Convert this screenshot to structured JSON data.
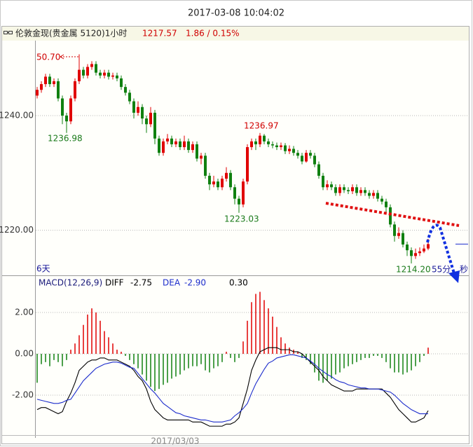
{
  "title": "2017-03-08 10:04:02",
  "chart_data": [
    {
      "type": "candlestick",
      "title": "伦敦金现(贵金属 5120)1小时",
      "header_values": [
        "1217.57",
        "1.86 / 0.15%"
      ],
      "open": [
        1243.5,
        1244.5,
        1245.5,
        1246.8,
        1245.5,
        1246,
        1243,
        1240,
        1239,
        1243,
        1246,
        1248,
        1247,
        1248.5,
        1249,
        1247.5,
        1247,
        1247.5,
        1246.8,
        1247,
        1246.5,
        1245,
        1244,
        1242.5,
        1240.5,
        1241.5,
        1239.5,
        1238.5,
        1240.5,
        1236,
        1233.5,
        1235.5,
        1236,
        1235,
        1235.5,
        1234.5,
        1235.5,
        1234,
        1235,
        1232.5,
        1233,
        1229.5,
        1228,
        1228.5,
        1227.5,
        1229,
        1230,
        1227.5,
        1225.5,
        1224.5,
        1228.5,
        1234.5,
        1235.5,
        1235,
        1236.5,
        1235.5,
        1235,
        1234.8,
        1234.5,
        1234.8,
        1233.8,
        1234.2,
        1233.5,
        1233,
        1232,
        1233.5,
        1233,
        1231.5,
        1229.5,
        1227.5,
        1228,
        1227.5,
        1226.5,
        1227.5,
        1227,
        1226.8,
        1227.5,
        1226.5,
        1227,
        1226.5,
        1226,
        1226.5,
        1225.5,
        1225,
        1224,
        1221,
        1219,
        1219.5,
        1217.5,
        1216.5,
        1215.5,
        1216,
        1216.3,
        1216.8
      ],
      "close": [
        1244.5,
        1245.5,
        1246.8,
        1245.5,
        1246,
        1243,
        1240,
        1239,
        1243,
        1246,
        1248,
        1247,
        1248.5,
        1249,
        1247.5,
        1247,
        1247.5,
        1246.8,
        1247,
        1246.5,
        1245,
        1244,
        1242.5,
        1240.5,
        1241.5,
        1239.5,
        1238.5,
        1240.5,
        1236,
        1233.5,
        1235.5,
        1236,
        1235,
        1235.5,
        1234.5,
        1235.5,
        1234,
        1235,
        1232.5,
        1233,
        1229.5,
        1228,
        1228.5,
        1227.5,
        1229,
        1230,
        1227.5,
        1225.5,
        1224.5,
        1228.5,
        1234.5,
        1235.5,
        1235,
        1236.5,
        1235.5,
        1235,
        1234.8,
        1234.5,
        1234.8,
        1233.8,
        1234.2,
        1233.5,
        1233,
        1232,
        1233.5,
        1233,
        1231.5,
        1229.5,
        1227.5,
        1228,
        1227.5,
        1226.5,
        1227.5,
        1227,
        1226.8,
        1227.5,
        1226.5,
        1227,
        1226.5,
        1226,
        1226.5,
        1225.5,
        1225,
        1224,
        1221,
        1219,
        1219.5,
        1217.5,
        1216.5,
        1215.5,
        1216,
        1216.3,
        1216.8,
        1217.57
      ],
      "high": [
        1245,
        1246,
        1247.3,
        1247.3,
        1246.5,
        1246.5,
        1243.5,
        1240.5,
        1243.5,
        1246.5,
        1250.7,
        1248.5,
        1249,
        1249.5,
        1249.5,
        1248,
        1248,
        1248,
        1247.5,
        1247.5,
        1247,
        1245.5,
        1244.5,
        1243,
        1242.5,
        1242,
        1240,
        1241.5,
        1241,
        1236.5,
        1236,
        1236.8,
        1236.5,
        1236,
        1236,
        1236.5,
        1236,
        1235.5,
        1235.5,
        1233.5,
        1233.5,
        1230,
        1229.5,
        1229,
        1229.5,
        1231,
        1230.5,
        1228,
        1226,
        1229,
        1235,
        1236,
        1236,
        1236.97,
        1236.8,
        1236,
        1235.5,
        1235.3,
        1235.3,
        1235.2,
        1234.8,
        1234.7,
        1234,
        1233.5,
        1234,
        1234,
        1233.5,
        1232,
        1230,
        1228.7,
        1228.5,
        1228,
        1228,
        1228,
        1227.5,
        1228,
        1228,
        1227.5,
        1227.5,
        1227,
        1227,
        1227,
        1226,
        1225.5,
        1224.5,
        1221.5,
        1220.5,
        1220,
        1218,
        1217,
        1216.8,
        1217,
        1217.5,
        1218.5
      ],
      "low": [
        1243,
        1244,
        1245,
        1245,
        1245,
        1242.5,
        1238.5,
        1236.98,
        1238.5,
        1242.5,
        1245.5,
        1246.5,
        1246.5,
        1248,
        1247,
        1246.5,
        1246.5,
        1246.3,
        1246.3,
        1246,
        1244.5,
        1243.5,
        1242,
        1239.5,
        1240,
        1238.5,
        1237,
        1238,
        1235,
        1233,
        1233,
        1235,
        1234.5,
        1234.5,
        1234,
        1234,
        1233.5,
        1233.5,
        1232,
        1231.5,
        1229,
        1227,
        1227.5,
        1227,
        1227,
        1228.5,
        1227,
        1224.5,
        1223.03,
        1224,
        1228,
        1234,
        1234,
        1234.5,
        1235,
        1234.5,
        1234.3,
        1234,
        1234,
        1233.3,
        1233.3,
        1233,
        1232.5,
        1231.5,
        1231.8,
        1232.5,
        1231,
        1229,
        1227,
        1227,
        1227,
        1226,
        1226,
        1226.5,
        1226.3,
        1226.3,
        1226,
        1226,
        1226,
        1225.5,
        1225.5,
        1225,
        1224.5,
        1223,
        1220.5,
        1218,
        1218.5,
        1217,
        1215.5,
        1214.2,
        1215,
        1215.5,
        1216,
        1216.5
      ],
      "up_color": "#e00000",
      "down_color": "#108010",
      "ylim": [
        1212.12,
        1253.09
      ],
      "yticks": [
        {
          "value": 1240,
          "label": "1240.00"
        },
        {
          "value": 1220,
          "label": "1220.00"
        }
      ],
      "grid": true,
      "annotations": [
        "50.70",
        "1236.98",
        "1236.97",
        "1223.03",
        "1214.20",
        "6天",
        "55分",
        "秒"
      ],
      "x_date_label": "2017/03/03"
    },
    {
      "type": "macd",
      "title": "MACD(12,26,9)",
      "legend_values": [
        "-2.75",
        "-2.90",
        "0.30"
      ],
      "histogram": {
        "up_color": "#e00000",
        "down_color": "#108010",
        "values": [
          -1.4,
          -0.5,
          -0.4,
          -0.6,
          -0.3,
          -0.4,
          -0.6,
          -0.3,
          0.2,
          0.5,
          0.9,
          1.4,
          1.9,
          2.2,
          2.0,
          1.6,
          1.1,
          0.8,
          0.5,
          0.2,
          0.1,
          -0.1,
          -0.3,
          -0.5,
          -0.7,
          -1.0,
          -1.3,
          -1.6,
          -1.8,
          -1.7,
          -1.5,
          -1.4,
          -1.2,
          -1.1,
          -1.0,
          -0.8,
          -0.7,
          -0.6,
          -0.6,
          -0.5,
          -0.8,
          -0.9,
          -0.7,
          -0.6,
          -0.4,
          0.1,
          -0.2,
          -0.4,
          -0.2,
          0.6,
          1.6,
          2.5,
          2.9,
          3.0,
          2.6,
          2.2,
          1.8,
          1.3,
          0.8,
          0.5,
          0.3,
          0.2,
          0.1,
          -0.2,
          -0.3,
          -0.5,
          -0.9,
          -1.3,
          -1.4,
          -1.3,
          -1.2,
          -1.0,
          -0.9,
          -0.7,
          -0.6,
          -0.5,
          -0.4,
          -0.3,
          -0.2,
          -0.2,
          -0.1,
          -0.1,
          -0.2,
          -0.4,
          -0.7,
          -0.9,
          -0.9,
          -1.0,
          -0.9,
          -0.8,
          -0.6,
          -0.4,
          -0.1,
          0.3
        ]
      },
      "series": [
        {
          "name": "DIFF",
          "color": "#000000",
          "values": [
            -2.7,
            -2.6,
            -2.6,
            -2.7,
            -2.8,
            -2.9,
            -2.8,
            -2.3,
            -1.9,
            -1.4,
            -0.8,
            -0.6,
            -0.4,
            -0.3,
            -0.3,
            -0.2,
            -0.2,
            -0.3,
            -0.3,
            -0.3,
            -0.4,
            -0.5,
            -0.6,
            -0.8,
            -1.1,
            -1.3,
            -1.7,
            -2.3,
            -2.7,
            -2.9,
            -3.1,
            -3.2,
            -3.2,
            -3.2,
            -3.2,
            -3.2,
            -3.2,
            -3.3,
            -3.3,
            -3.3,
            -3.4,
            -3.5,
            -3.5,
            -3.5,
            -3.5,
            -3.4,
            -3.4,
            -3.3,
            -3.1,
            -2.4,
            -1.7,
            -0.8,
            -0.3,
            0.1,
            0.2,
            0.3,
            0.3,
            0.3,
            0.2,
            0.2,
            0.2,
            0.1,
            0.1,
            0.0,
            -0.2,
            -0.4,
            -0.6,
            -0.8,
            -1.1,
            -1.3,
            -1.5,
            -1.6,
            -1.7,
            -1.8,
            -1.8,
            -1.8,
            -1.7,
            -1.7,
            -1.7,
            -1.7,
            -1.7,
            -1.7,
            -1.7,
            -1.9,
            -2.1,
            -2.4,
            -2.7,
            -2.9,
            -3.1,
            -3.3,
            -3.3,
            -3.2,
            -3.1,
            -2.75
          ]
        },
        {
          "name": "DEA",
          "color": "#1c2ccc",
          "values": [
            -2.2,
            -2.25,
            -2.3,
            -2.35,
            -2.4,
            -2.4,
            -2.35,
            -2.25,
            -2.2,
            -1.9,
            -1.6,
            -1.3,
            -1.1,
            -0.9,
            -0.7,
            -0.6,
            -0.5,
            -0.45,
            -0.4,
            -0.4,
            -0.45,
            -0.55,
            -0.65,
            -0.7,
            -0.95,
            -1.2,
            -1.45,
            -1.7,
            -1.9,
            -2.15,
            -2.4,
            -2.55,
            -2.7,
            -2.85,
            -2.9,
            -3.0,
            -3.05,
            -3.1,
            -3.15,
            -3.2,
            -3.2,
            -3.25,
            -3.3,
            -3.3,
            -3.3,
            -3.25,
            -3.2,
            -3.0,
            -2.85,
            -2.65,
            -2.4,
            -1.9,
            -1.45,
            -1.1,
            -0.75,
            -0.45,
            -0.35,
            -0.2,
            -0.15,
            -0.1,
            -0.05,
            -0.05,
            -0.1,
            -0.15,
            -0.2,
            -0.35,
            -0.5,
            -0.7,
            -0.85,
            -1.0,
            -1.1,
            -1.25,
            -1.35,
            -1.4,
            -1.5,
            -1.55,
            -1.6,
            -1.65,
            -1.65,
            -1.7,
            -1.7,
            -1.7,
            -1.75,
            -1.8,
            -1.85,
            -2.0,
            -2.2,
            -2.4,
            -2.55,
            -2.7,
            -2.8,
            -2.9,
            -2.9,
            -2.9
          ]
        }
      ],
      "ylim": [
        -4.17,
        3.73
      ],
      "yticks": [
        {
          "value": 2,
          "label": "2.00"
        },
        {
          "value": 0,
          "label": "0.00"
        },
        {
          "value": -2,
          "label": "-2.00"
        }
      ],
      "grid": true
    }
  ]
}
